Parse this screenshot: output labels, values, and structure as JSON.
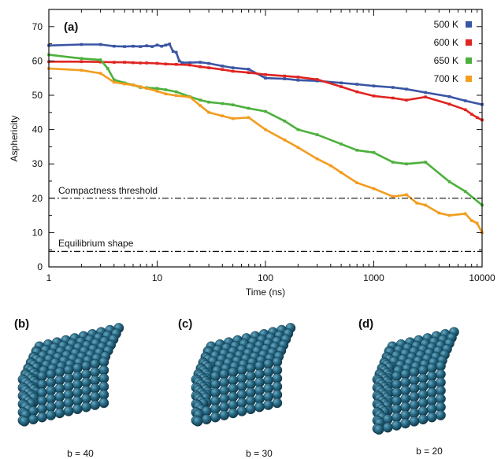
{
  "chart_data": {
    "type": "line",
    "panel_label": "(a)",
    "xlabel": "Time (ns)",
    "ylabel": "Asphericity",
    "x_scale": "log",
    "xlim": [
      1,
      10000
    ],
    "ylim": [
      0,
      75
    ],
    "x_ticks": [
      {
        "value": 1,
        "label": "1"
      },
      {
        "value": 10,
        "label": "10"
      },
      {
        "value": 100,
        "label": "100"
      },
      {
        "value": 1000,
        "label": "1000"
      },
      {
        "value": 10000,
        "label": "10000"
      }
    ],
    "y_ticks": [
      {
        "value": 0,
        "label": "0"
      },
      {
        "value": 10,
        "label": "10"
      },
      {
        "value": 20,
        "label": "20"
      },
      {
        "value": 30,
        "label": "30"
      },
      {
        "value": 40,
        "label": "40"
      },
      {
        "value": 50,
        "label": "50"
      },
      {
        "value": 60,
        "label": "60"
      },
      {
        "value": 70,
        "label": "70"
      }
    ],
    "grid": false,
    "legend_position": "top-right",
    "series": [
      {
        "name": "500 K",
        "color": "#3a55a4",
        "x": [
          1,
          2,
          3,
          4,
          5,
          6,
          7,
          8,
          9,
          10,
          11,
          12,
          13,
          14,
          15,
          16,
          17,
          20,
          25,
          30,
          40,
          50,
          70,
          100,
          150,
          200,
          300,
          500,
          700,
          1000,
          1500,
          2000,
          3000,
          5000,
          7000,
          10000
        ],
        "y": [
          64.5,
          64.8,
          64.8,
          64.3,
          64.2,
          64.3,
          64.2,
          64.4,
          64.2,
          64.6,
          64.3,
          64.6,
          64.9,
          62.8,
          62.5,
          60.0,
          59.5,
          59.5,
          59.6,
          59.3,
          58.5,
          58.0,
          57.6,
          55.0,
          54.8,
          54.4,
          54.2,
          53.6,
          53.2,
          52.7,
          52.3,
          51.8,
          50.8,
          49.6,
          48.4,
          47.3
        ]
      },
      {
        "name": "600 K",
        "color": "#e02420",
        "x": [
          1,
          2,
          3,
          4,
          5,
          6,
          7,
          8,
          10,
          12,
          15,
          20,
          25,
          30,
          40,
          50,
          70,
          100,
          150,
          200,
          300,
          500,
          700,
          1000,
          1500,
          2000,
          3000,
          5000,
          7000,
          8000,
          9000,
          10000
        ],
        "y": [
          59.8,
          59.8,
          59.7,
          59.6,
          59.6,
          59.5,
          59.4,
          59.4,
          59.3,
          59.1,
          59.0,
          58.8,
          58.3,
          58.0,
          57.5,
          57.0,
          56.6,
          56.0,
          55.6,
          55.3,
          54.6,
          52.5,
          51.0,
          49.8,
          49.2,
          48.6,
          49.5,
          47.4,
          45.8,
          44.5,
          43.5,
          42.8
        ]
      },
      {
        "name": "650 K",
        "color": "#4cb03c",
        "x": [
          1,
          2,
          3,
          3.5,
          4,
          5,
          6,
          7,
          8,
          10,
          12,
          15,
          20,
          25,
          30,
          40,
          50,
          70,
          100,
          150,
          200,
          300,
          500,
          700,
          1000,
          1500,
          2000,
          3000,
          5000,
          7000,
          10000
        ],
        "y": [
          61.8,
          60.7,
          60.3,
          57.8,
          54.5,
          53.6,
          53.0,
          52.3,
          52.2,
          52.0,
          51.6,
          51.0,
          49.6,
          48.6,
          48.0,
          47.6,
          47.2,
          46.2,
          45.3,
          42.5,
          40.0,
          38.5,
          35.8,
          34.0,
          33.3,
          30.5,
          30.0,
          30.5,
          24.8,
          22.0,
          18.0
        ]
      },
      {
        "name": "700 K",
        "color": "#f39c1f",
        "x": [
          1,
          2,
          3,
          4,
          5,
          6,
          7,
          8,
          10,
          12,
          15,
          20,
          25,
          30,
          40,
          50,
          70,
          100,
          150,
          200,
          300,
          400,
          500,
          700,
          1000,
          1500,
          2000,
          2500,
          3000,
          4000,
          5000,
          7000,
          8000,
          9000,
          10000
        ],
        "y": [
          57.8,
          57.3,
          56.4,
          53.8,
          53.3,
          53.0,
          52.5,
          52.0,
          51.2,
          50.4,
          49.9,
          49.5,
          47.0,
          45.0,
          44.0,
          43.2,
          43.5,
          40.0,
          37.0,
          34.8,
          31.5,
          29.5,
          27.5,
          24.5,
          22.8,
          20.5,
          21.0,
          18.6,
          18.0,
          15.7,
          15.0,
          15.5,
          13.5,
          12.7,
          10.0
        ]
      }
    ],
    "reference_lines": [
      {
        "y": 20,
        "label": "Compactness threshold"
      },
      {
        "y": 4.5,
        "label": "Equilibrium shape"
      }
    ]
  },
  "panels": [
    {
      "label": "(b)",
      "caption": "b = 40"
    },
    {
      "label": "(c)",
      "caption": "b = 30"
    },
    {
      "label": "(d)",
      "caption": "b = 20"
    }
  ],
  "colors": {
    "sphere": "#1f5d78",
    "sphere_highlight": "#5a93ab",
    "sphere_shadow": "#123a4b"
  }
}
